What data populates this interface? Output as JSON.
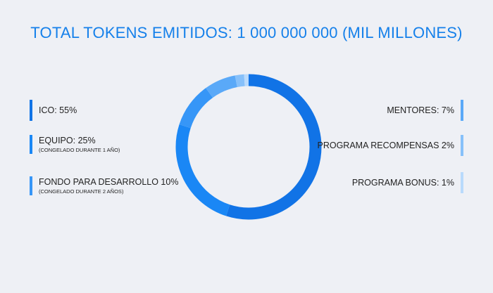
{
  "title": "TOTAL TOKENS EMITIDOS: 1 000 000 000 (MIL MILLONES)",
  "chart_data": {
    "type": "pie",
    "title": "TOTAL TOKENS EMITIDOS: 1 000 000 000 (MIL MILLONES)",
    "series": [
      {
        "name": "ICO",
        "value": 55,
        "color": "#1173e6",
        "label": "ICO: 55%",
        "note": ""
      },
      {
        "name": "EQUIPO",
        "value": 25,
        "color": "#1a87f5",
        "label": "EQUIPO: 25%",
        "note": "(CONGELADO DURANTE 1 AÑO)"
      },
      {
        "name": "FONDO PARA DESARROLLO",
        "value": 10,
        "color": "#3696f7",
        "label": "FONDO PARA DESARROLLO 10%",
        "note": "(CONGELADO DURANTE 2 AÑOS)"
      },
      {
        "name": "MENTORES",
        "value": 7,
        "color": "#5aa9f8",
        "label": "MENTORES: 7%",
        "note": ""
      },
      {
        "name": "PROGRAMA RECOMPENSAS",
        "value": 2,
        "color": "#86c0fa",
        "label": "PROGRAMA RECOMPENSAS 2%",
        "note": ""
      },
      {
        "name": "PROGRAMA BONUS",
        "value": 1,
        "color": "#b9dafc",
        "label": "PROGRAMA BONUS: 1%",
        "note": ""
      }
    ],
    "style": "donut",
    "legend": "split-left-right"
  }
}
